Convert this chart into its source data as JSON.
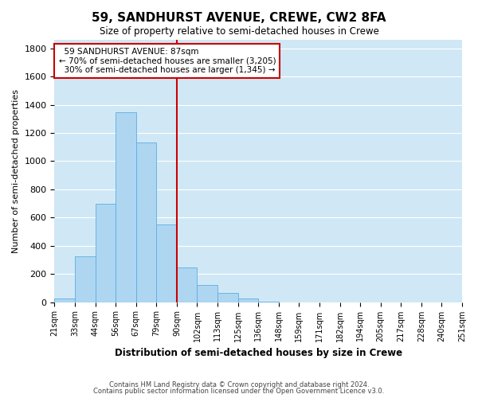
{
  "title": "59, SANDHURST AVENUE, CREWE, CW2 8FA",
  "subtitle": "Size of property relative to semi-detached houses in Crewe",
  "xlabel": "Distribution of semi-detached houses by size in Crewe",
  "ylabel": "Number of semi-detached properties",
  "bar_color": "#aed6f1",
  "bar_edge_color": "#5dade2",
  "background_color": "#ffffff",
  "grid_color": "#d0e8f5",
  "bin_labels": [
    "21sqm",
    "33sqm",
    "44sqm",
    "56sqm",
    "67sqm",
    "79sqm",
    "90sqm",
    "102sqm",
    "113sqm",
    "125sqm",
    "136sqm",
    "148sqm",
    "159sqm",
    "171sqm",
    "182sqm",
    "194sqm",
    "205sqm",
    "217sqm",
    "228sqm",
    "240sqm",
    "251sqm"
  ],
  "bar_heights": [
    25,
    325,
    695,
    1345,
    1130,
    550,
    245,
    120,
    65,
    25,
    5,
    0,
    0,
    0,
    0,
    0,
    0,
    0,
    0,
    0
  ],
  "ylim": [
    0,
    1860
  ],
  "yticks": [
    0,
    200,
    400,
    600,
    800,
    1000,
    1200,
    1400,
    1600,
    1800
  ],
  "property_label": "59 SANDHURST AVENUE: 87sqm",
  "pct_smaller": 70,
  "n_smaller": 3205,
  "pct_larger": 30,
  "n_larger": 1345,
  "vline_x": 6.0,
  "annotation_line_color": "#cc0000",
  "footer_line1": "Contains HM Land Registry data © Crown copyright and database right 2024.",
  "footer_line2": "Contains public sector information licensed under the Open Government Licence v3.0."
}
